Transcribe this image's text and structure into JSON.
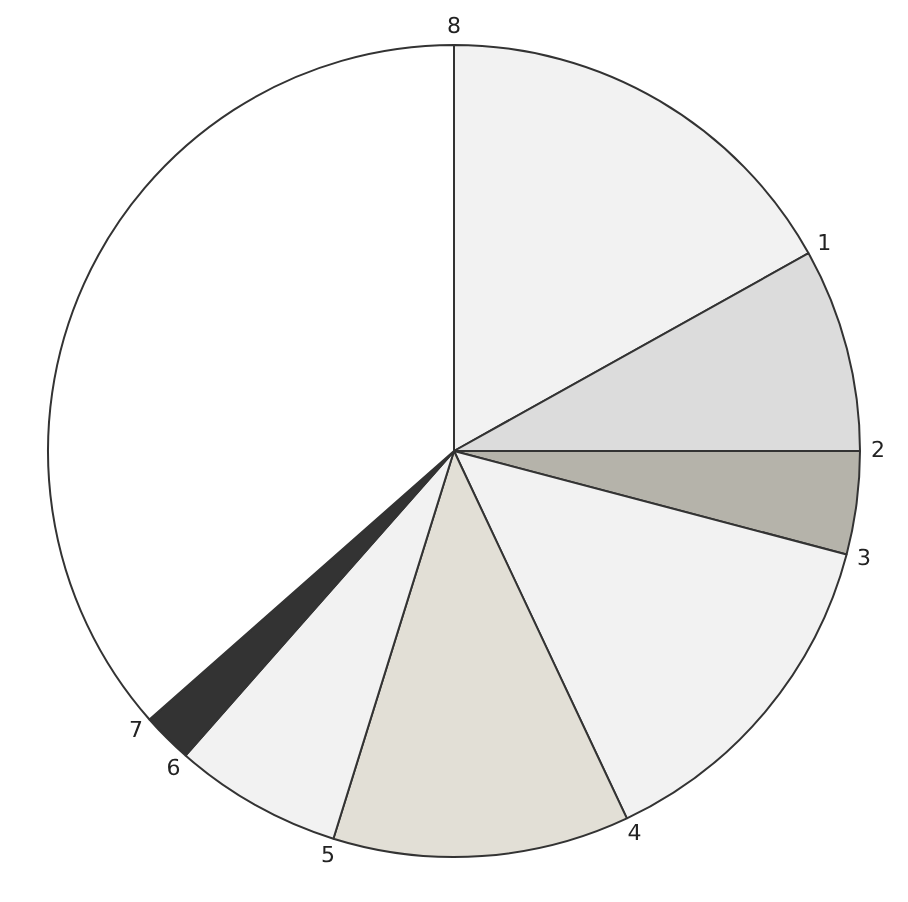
{
  "chart_data": {
    "type": "pie",
    "categories": [
      "1",
      "2",
      "3",
      "4",
      "5",
      "6",
      "7",
      "8"
    ],
    "values": [
      16.9,
      8.1,
      4.1,
      13.9,
      11.8,
      6.7,
      2.0,
      36.5
    ],
    "colors": [
      "#f2f2f2",
      "#dcdcdc",
      "#b5b3aa",
      "#f2f2f2",
      "#e2dfd6",
      "#f2f2f2",
      "#333333",
      "#ffffff"
    ],
    "legend": false
  }
}
